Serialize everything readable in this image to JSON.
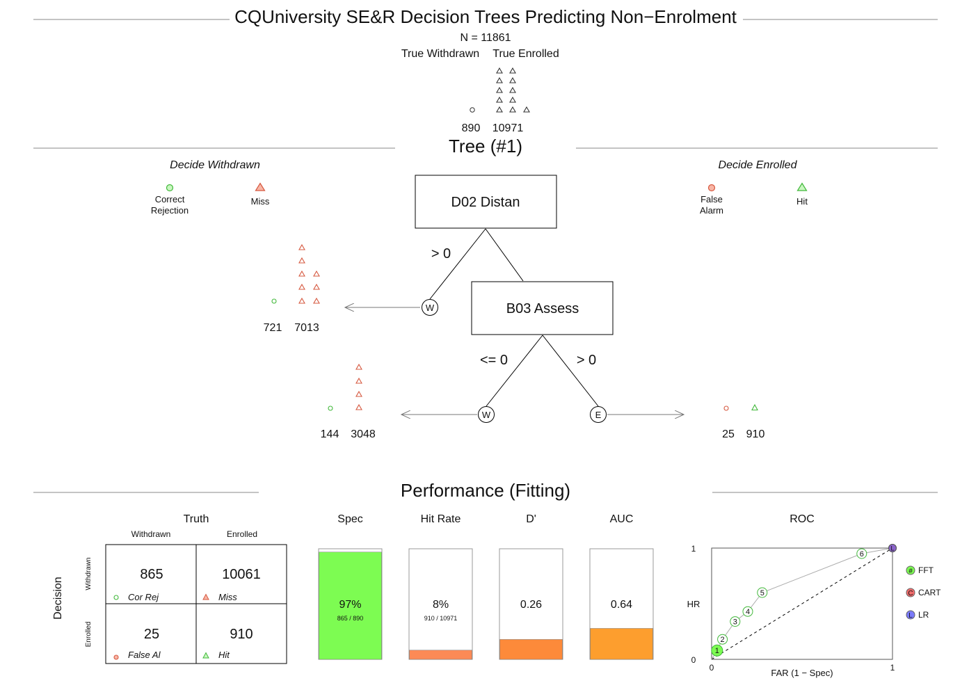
{
  "title": "CQUniversity SE&R Decision Trees Predicting Non−Enrolment",
  "n_label": "N = 11861",
  "truth_labels": {
    "withdrawn": "True Withdrawn",
    "enrolled": "True Enrolled"
  },
  "truth_counts": {
    "withdrawn": "890",
    "enrolled": "10971"
  },
  "tree_title": "Tree (#1)",
  "decide_withdrawn": "Decide Withdrawn",
  "decide_enrolled": "Decide Enrolled",
  "legend": {
    "correct_rejection": [
      "Correct",
      "Rejection"
    ],
    "miss": "Miss",
    "false_alarm": [
      "False",
      "Alarm"
    ],
    "hit": "Hit"
  },
  "nodes": [
    {
      "label": "D02 Distan",
      "exit_label": "> 0",
      "exit_marker": "W",
      "counts": [
        "721",
        "7013"
      ]
    },
    {
      "label": "B03 Assess",
      "exit_label": "<= 0",
      "exit_marker": "W",
      "counts": [
        "144",
        "3048"
      ],
      "final_label": "> 0",
      "final_marker": "E",
      "final_counts": [
        "25",
        "910"
      ]
    }
  ],
  "performance_title": "Performance (Fitting)",
  "confusion": {
    "truth": "Truth",
    "decision": "Decision",
    "col_withdrawn": "Withdrawn",
    "col_enrolled": "Enrolled",
    "row_withdrawn": "Withdrawn",
    "row_enrolled": "Enrolled",
    "cells": [
      {
        "value": "865",
        "label": "Cor Rej"
      },
      {
        "value": "10061",
        "label": "Miss"
      },
      {
        "value": "25",
        "label": "False Al"
      },
      {
        "value": "910",
        "label": "Hit"
      }
    ]
  },
  "metrics": [
    {
      "name": "Spec",
      "value_label": "97%",
      "sub": "865 / 890",
      "fraction": 0.97,
      "color": "#7dfc52"
    },
    {
      "name": "Hit Rate",
      "value_label": "8%",
      "sub": "910 / 10971",
      "fraction": 0.083,
      "color": "#fc8a56"
    },
    {
      "name": "D'",
      "value_label": "0.26",
      "sub": "",
      "fraction": 0.18,
      "color": "#fd8a3a"
    },
    {
      "name": "AUC",
      "value_label": "0.64",
      "sub": "",
      "fraction": 0.28,
      "color": "#fd9e2e"
    }
  ],
  "roc": {
    "title": "ROC",
    "xlabel": "FAR (1 − Spec)",
    "ylabel": "HR",
    "x_ticks": [
      "0",
      "1"
    ],
    "y_ticks": [
      "0",
      "1"
    ],
    "legend": [
      {
        "symbol": "#",
        "label": "FFT",
        "color": "#7dfc52"
      },
      {
        "symbol": "C",
        "label": "CART",
        "color": "#ef6b6b"
      },
      {
        "symbol": "L",
        "label": "LR",
        "color": "#7b7bfa"
      }
    ],
    "fft_points": [
      {
        "id": "1",
        "far": 0.03,
        "hr": 0.08
      },
      {
        "id": "2",
        "far": 0.06,
        "hr": 0.18
      },
      {
        "id": "3",
        "far": 0.13,
        "hr": 0.34
      },
      {
        "id": "4",
        "far": 0.2,
        "hr": 0.43
      },
      {
        "id": "5",
        "far": 0.28,
        "hr": 0.6
      },
      {
        "id": "6",
        "far": 0.83,
        "hr": 0.95
      }
    ],
    "cart_point": {
      "id": "C",
      "far": 1.0,
      "hr": 1.0
    },
    "lr_point": {
      "id": "L",
      "far": 1.0,
      "hr": 1.0
    }
  }
}
